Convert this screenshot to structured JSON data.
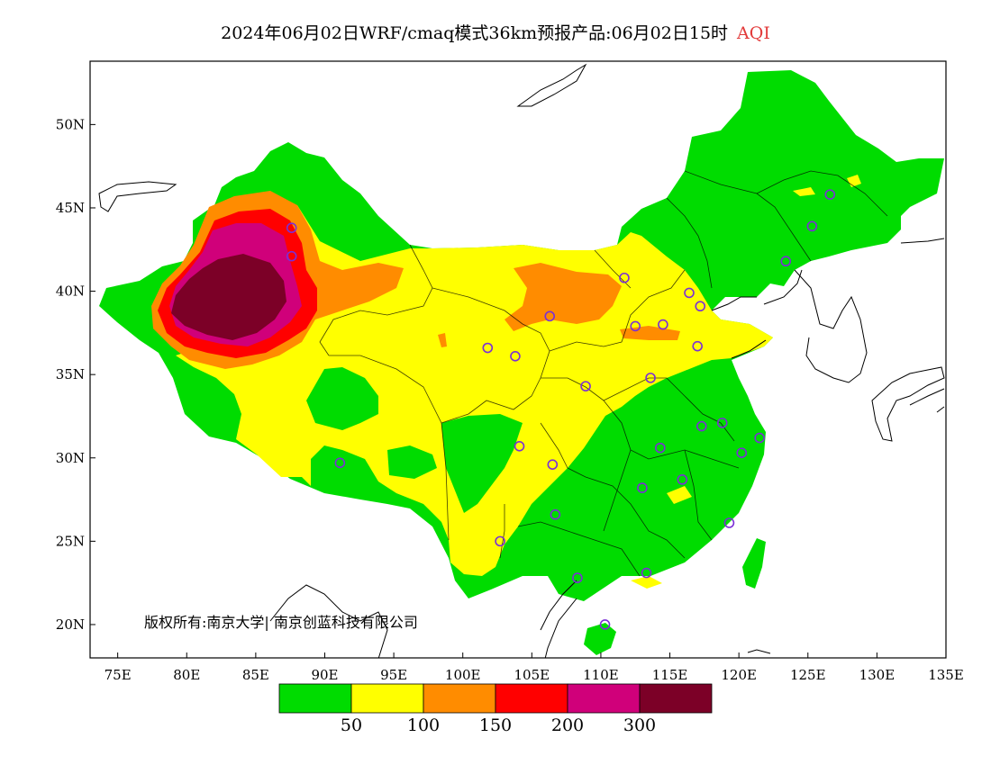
{
  "title": {
    "main": "2024年06月02日WRF/cmaq模式36km预报产品:06月02日15时",
    "variable": "AQI"
  },
  "map": {
    "lat_ticks": [
      "50N",
      "45N",
      "40N",
      "35N",
      "30N",
      "25N",
      "20N"
    ],
    "lat_values": [
      50,
      45,
      40,
      35,
      30,
      25,
      20
    ],
    "lon_ticks": [
      "75E",
      "80E",
      "85E",
      "90E",
      "95E",
      "100E",
      "105E",
      "110E",
      "115E",
      "120E",
      "125E",
      "130E",
      "135E"
    ],
    "lon_values": [
      75,
      80,
      85,
      90,
      95,
      100,
      105,
      110,
      115,
      120,
      125,
      130,
      135
    ],
    "lon_range": [
      73,
      135
    ],
    "lat_range": [
      18,
      53.8
    ],
    "copyright": "版权所有:南京大学| 南京创蓝科技有限公司",
    "background_color": "#ffffff"
  },
  "legend": {
    "colors": [
      "#00dc00",
      "#ffff00",
      "#ff8c00",
      "#ff0000",
      "#d0007a",
      "#7c0027"
    ],
    "labels": [
      "50",
      "100",
      "150",
      "200",
      "300"
    ]
  },
  "stations": [
    [
      87.6,
      43.8
    ],
    [
      87.6,
      42.1
    ],
    [
      91.1,
      29.7
    ],
    [
      101.8,
      36.6
    ],
    [
      103.8,
      36.1
    ],
    [
      106.3,
      38.5
    ],
    [
      108.9,
      34.3
    ],
    [
      111.7,
      40.8
    ],
    [
      112.5,
      37.9
    ],
    [
      114.5,
      38.0
    ],
    [
      116.4,
      39.9
    ],
    [
      117.2,
      39.1
    ],
    [
      117.0,
      36.7
    ],
    [
      113.6,
      34.8
    ],
    [
      117.3,
      31.9
    ],
    [
      118.8,
      32.1
    ],
    [
      121.5,
      31.2
    ],
    [
      120.2,
      30.3
    ],
    [
      114.3,
      30.6
    ],
    [
      113.0,
      28.2
    ],
    [
      115.9,
      28.7
    ],
    [
      119.3,
      26.1
    ],
    [
      113.3,
      23.1
    ],
    [
      108.3,
      22.8
    ],
    [
      110.3,
      20.0
    ],
    [
      106.7,
      26.6
    ],
    [
      102.7,
      25.0
    ],
    [
      104.1,
      30.7
    ],
    [
      106.5,
      29.6
    ],
    [
      123.4,
      41.8
    ],
    [
      125.3,
      43.9
    ],
    [
      126.6,
      45.8
    ]
  ]
}
